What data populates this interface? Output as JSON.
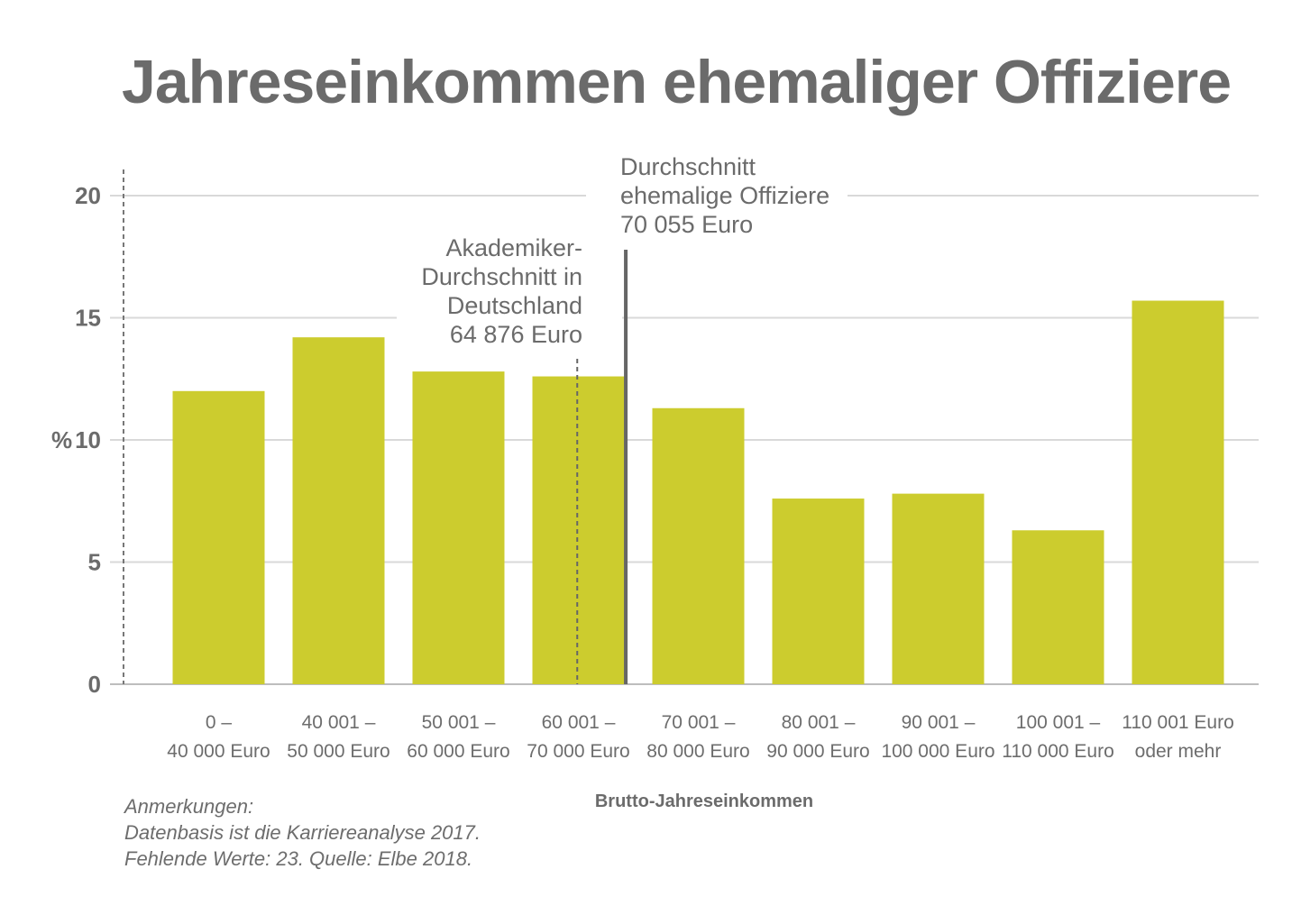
{
  "chart_data": {
    "type": "bar",
    "title": "Jahreseinkommen ehemaliger Offiziere",
    "ylabel": "%",
    "xlabel": "Brutto-Jahreseinkommen",
    "ylim": [
      0,
      20
    ],
    "yticks": [
      "0",
      "5",
      "10",
      "15",
      "20"
    ],
    "grid": true,
    "bar_color": "#cccc2e",
    "categories": [
      [
        "0 –",
        "40 000 Euro"
      ],
      [
        "40 001 –",
        "50 000 Euro"
      ],
      [
        "50 001 –",
        "60 000 Euro"
      ],
      [
        "60 001 –",
        "70 000 Euro"
      ],
      [
        "70 001 –",
        "80 000 Euro"
      ],
      [
        "80 001 –",
        "90 000 Euro"
      ],
      [
        "90 001 –",
        "100 000 Euro"
      ],
      [
        "100 001 –",
        "110 000 Euro"
      ],
      [
        "110 001 Euro",
        "oder mehr"
      ]
    ],
    "values": [
      12.0,
      14.2,
      12.8,
      12.6,
      11.3,
      7.6,
      7.8,
      6.3,
      15.7
    ],
    "annotations": [
      {
        "name": "akademiker-durchschnitt",
        "lines": [
          "Akademiker-",
          "Durchschnitt in",
          "Deutschland",
          "64 876 Euro"
        ],
        "value_euro": 64876,
        "style": "dashed"
      },
      {
        "name": "offiziere-durchschnitt",
        "lines": [
          "Durchschnitt",
          "ehemalige Offiziere",
          "70 055 Euro"
        ],
        "value_euro": 70055,
        "style": "solid"
      }
    ]
  },
  "notes": [
    "Anmerkungen:",
    "Datenbasis ist die Karriereanalyse 2017.",
    "Fehlende Werte: 23. Quelle: Elbe 2018."
  ]
}
